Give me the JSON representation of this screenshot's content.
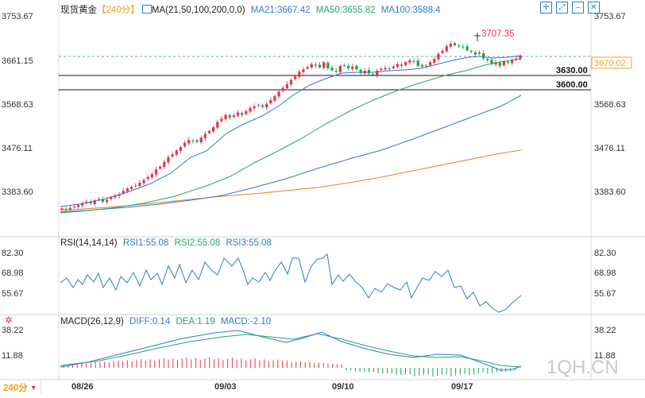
{
  "header": {
    "symbol": "现货黄金",
    "period_tag": "240分",
    "ma_label": "MA(21,50,100,200,0,0)",
    "ma21": "MA21:3667.42",
    "ma50": "MA50:3655.82",
    "ma100": "MA100:3588.4",
    "icons": [
      "crosshair-icon",
      "zoom-icon",
      "minimize-icon",
      "close-icon"
    ]
  },
  "colors": {
    "up": "#e8334a",
    "down": "#1aa34a",
    "ma21": "#2b7bd3",
    "ma50": "#27a56a",
    "ma100": "#2b7bd3",
    "ma200": "#ef7a1a",
    "dif": "#2b7bd3",
    "dea": "#27a56a",
    "axis": "#333333",
    "accent": "#f0a020"
  },
  "price_axis": {
    "labels": [
      "3753.67",
      "3661.15",
      "3568.63",
      "3476.11",
      "3383.60"
    ],
    "current_price": "3670.02"
  },
  "annotations": {
    "peak_label": "3707.35",
    "level1": "3630.00",
    "level2": "3600.00"
  },
  "rsi": {
    "title": "RSI(14,14,14)",
    "rsi1": "RSI1:55.08",
    "rsi2": "RSI2:55.08",
    "rsi3": "RSI3:55.08",
    "labels": [
      "82.30",
      "68.98",
      "55.67"
    ]
  },
  "macd": {
    "title": "MACD(26,12,9)",
    "dif": "DIFF:0.14",
    "dea": "DEA:1.19",
    "macd": "MACD:-2.10",
    "labels": [
      "38.22",
      "11.88"
    ]
  },
  "footer": {
    "period_button": "240分",
    "dates": [
      "08/26",
      "09/03",
      "09/10",
      "09/17"
    ]
  },
  "watermark": "1QH.CN",
  "chart_data": {
    "type": "candlestick",
    "timeframe": "240分",
    "ylim": [
      3300,
      3800
    ],
    "close_series_approx": [
      3348,
      3346,
      3349,
      3352,
      3355,
      3358,
      3362,
      3358,
      3365,
      3368,
      3362,
      3366,
      3372,
      3375,
      3378,
      3385,
      3390,
      3393,
      3396,
      3402,
      3408,
      3414,
      3420,
      3430,
      3436,
      3446,
      3456,
      3462,
      3470,
      3477,
      3486,
      3492,
      3490,
      3488,
      3497,
      3505,
      3511,
      3519,
      3530,
      3537,
      3545,
      3539,
      3544,
      3550,
      3545,
      3553,
      3560,
      3563,
      3566,
      3562,
      3568,
      3576,
      3585,
      3594,
      3602,
      3610,
      3619,
      3626,
      3636,
      3641,
      3646,
      3652,
      3649,
      3645,
      3656,
      3643,
      3639,
      3636,
      3648,
      3649,
      3643,
      3647,
      3641,
      3633,
      3638,
      3632,
      3630,
      3638,
      3642,
      3644,
      3642,
      3647,
      3652,
      3648,
      3656,
      3660,
      3658,
      3648,
      3650,
      3648,
      3656,
      3663,
      3674,
      3680,
      3690,
      3695,
      3692,
      3690,
      3688,
      3681,
      3678,
      3672,
      3676,
      3664,
      3660,
      3652,
      3656,
      3648,
      3658,
      3655,
      3660,
      3664,
      3670
    ],
    "levels": [
      {
        "price": 3630.0
      },
      {
        "price": 3600.0
      }
    ],
    "peak": {
      "price": 3707.35
    },
    "current": 3670.02,
    "ma": {
      "MA21": 3667.42,
      "MA50": 3655.82,
      "MA100": 3588.4
    }
  }
}
